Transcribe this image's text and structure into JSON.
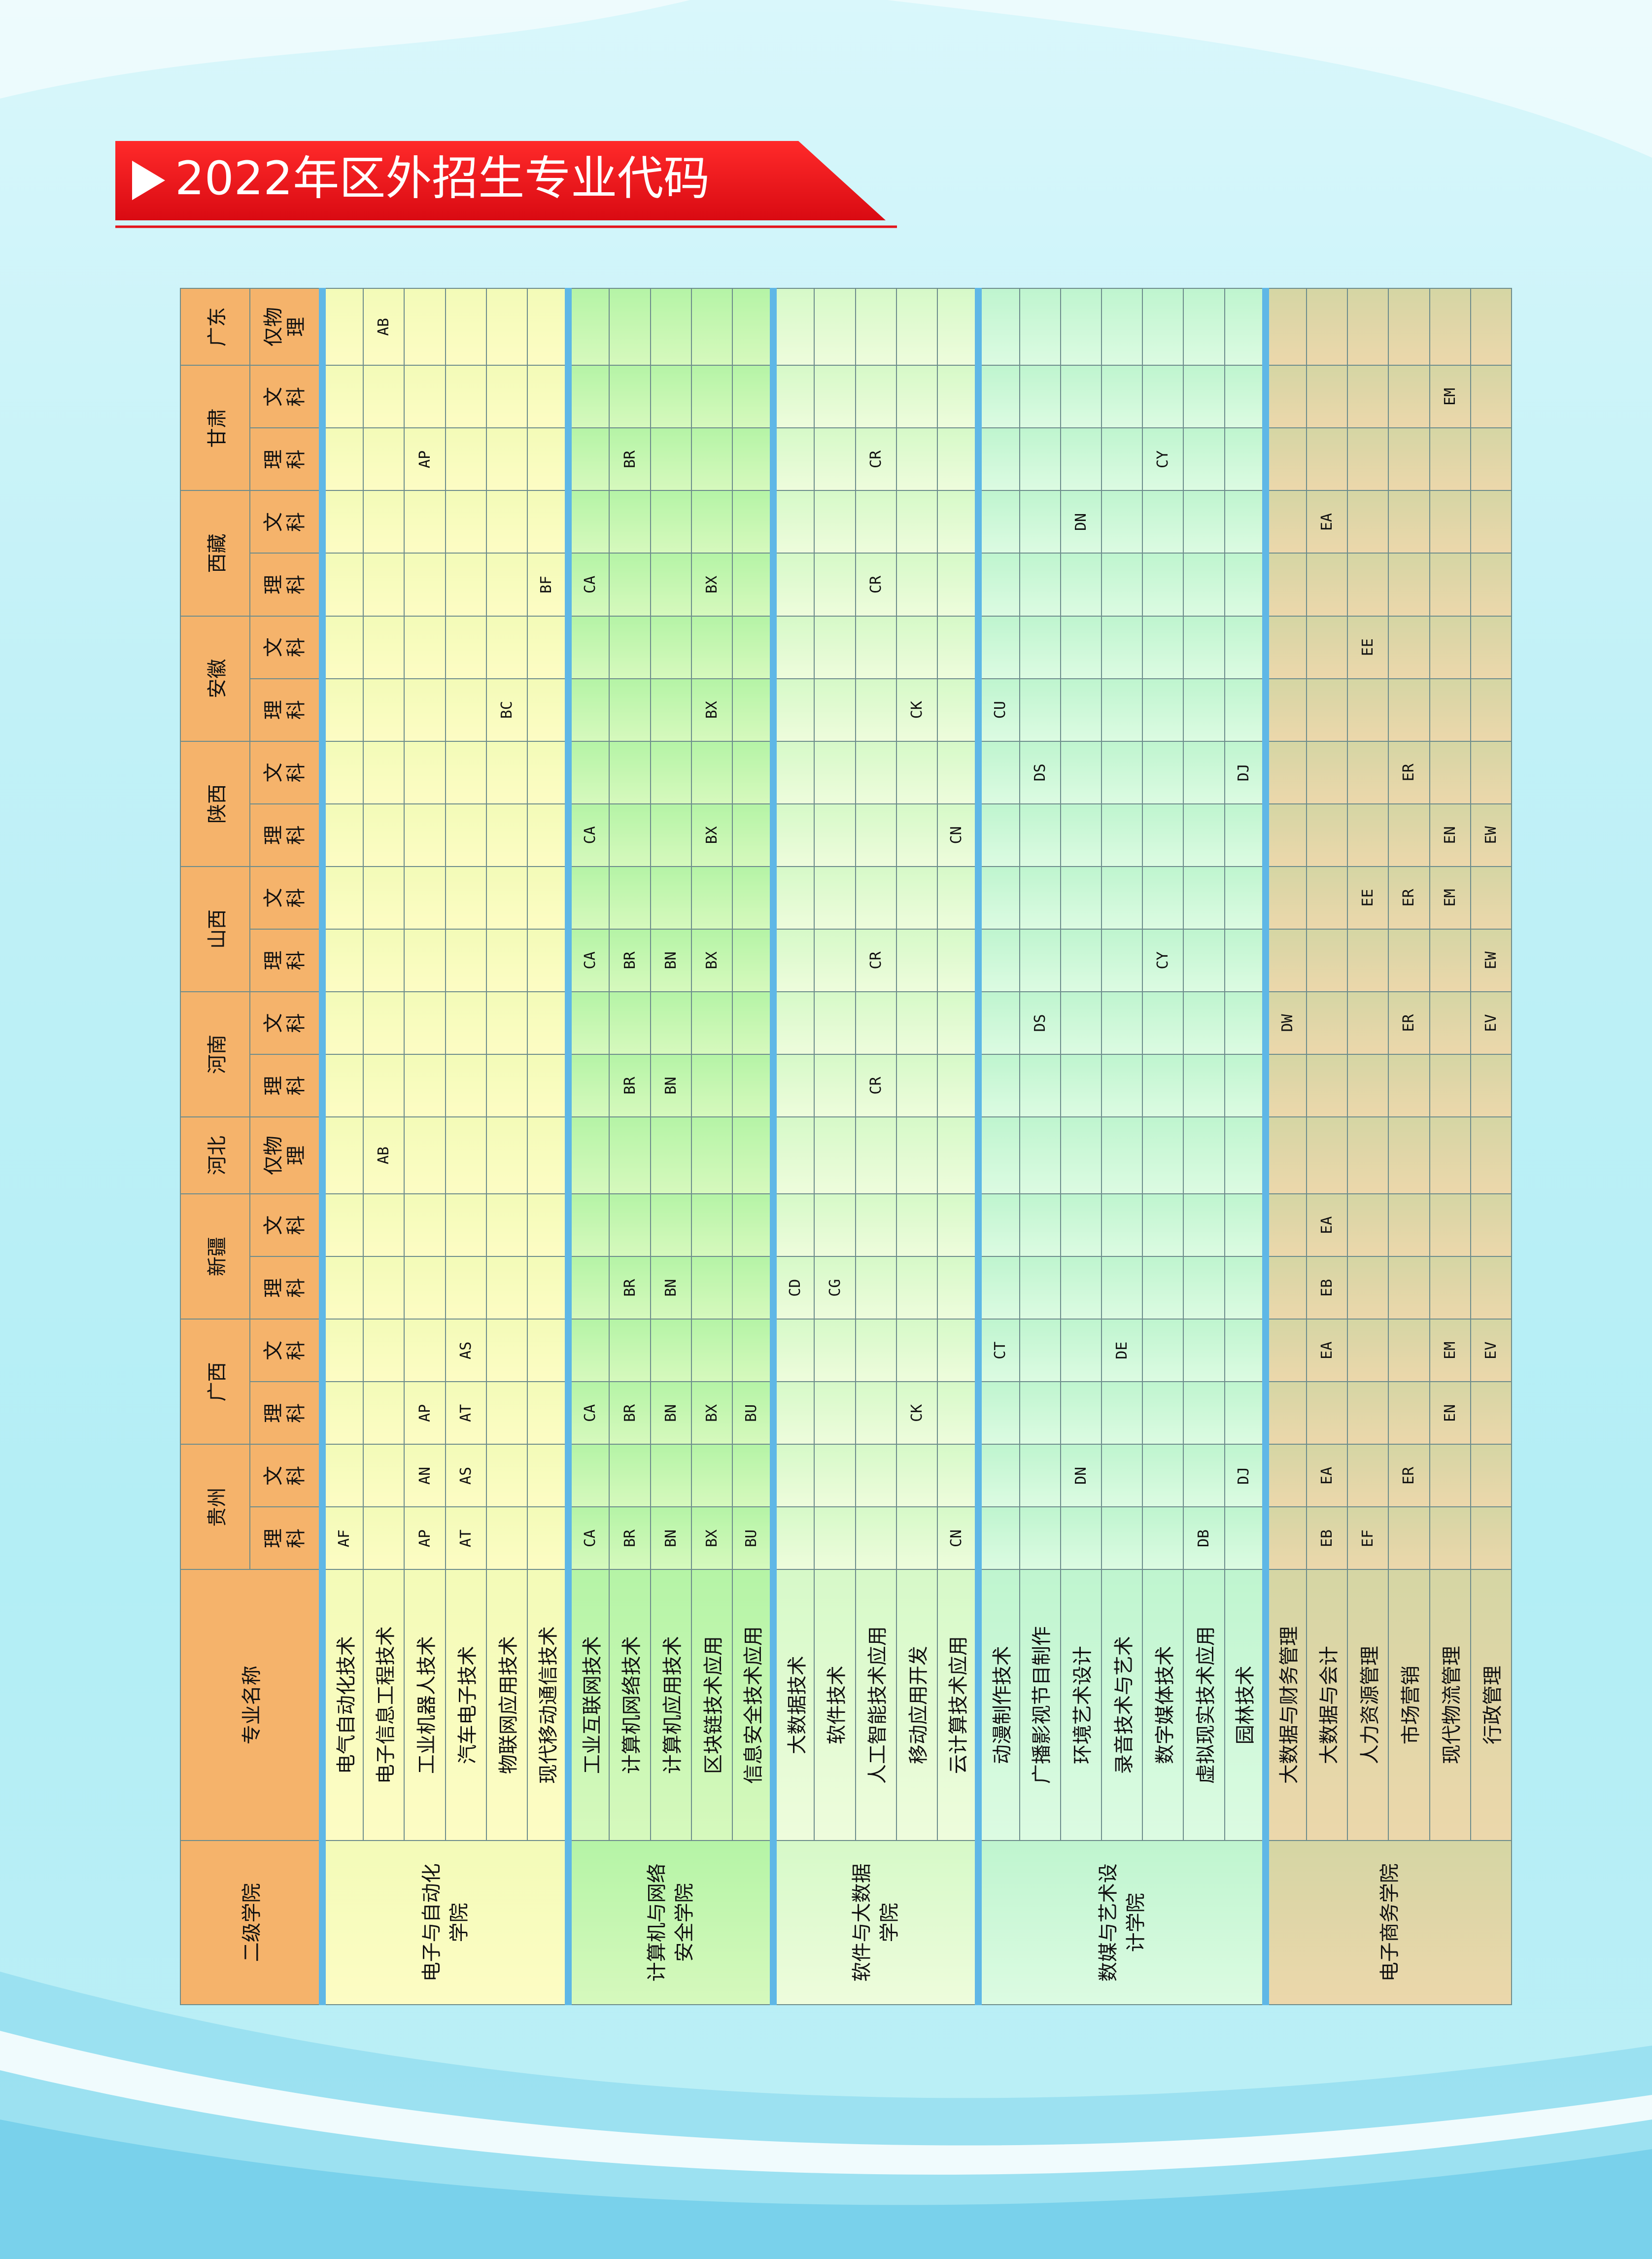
{
  "title": "2022年区外招生专业代码",
  "table": {
    "headers": {
      "college": "二级学院",
      "major": "专业名称",
      "provinces": [
        {
          "name": "贵州",
          "subs": [
            "理科",
            "文科"
          ]
        },
        {
          "name": "广西",
          "subs": [
            "理科",
            "文科"
          ]
        },
        {
          "name": "新疆",
          "subs": [
            "理科",
            "文科"
          ]
        },
        {
          "name": "河北",
          "subs": [
            "仅物理"
          ]
        },
        {
          "name": "河南",
          "subs": [
            "理科",
            "文科"
          ]
        },
        {
          "name": "山西",
          "subs": [
            "理科",
            "文科"
          ]
        },
        {
          "name": "陕西",
          "subs": [
            "理科",
            "文科"
          ]
        },
        {
          "name": "安徽",
          "subs": [
            "理科",
            "文科"
          ]
        },
        {
          "name": "西藏",
          "subs": [
            "理科",
            "文科"
          ]
        },
        {
          "name": "甘肃",
          "subs": [
            "理科",
            "文科"
          ]
        },
        {
          "name": "广东",
          "subs": [
            "仅物理"
          ]
        }
      ]
    },
    "groups": [
      {
        "college": "电子与自动化学院",
        "majors": [
          {
            "name": "电气自动化技术",
            "codes": [
              "AF",
              null,
              null,
              null,
              null,
              null,
              null,
              null,
              null,
              null,
              null,
              null,
              null,
              null,
              null,
              null,
              null,
              null,
              null,
              null
            ]
          },
          {
            "name": "电子信息工程技术",
            "codes": [
              null,
              null,
              null,
              null,
              null,
              null,
              "AB",
              null,
              null,
              null,
              null,
              null,
              null,
              null,
              null,
              null,
              null,
              null,
              null,
              "AB"
            ]
          },
          {
            "name": "工业机器人技术",
            "codes": [
              "AP",
              "AN",
              "AP",
              null,
              null,
              null,
              null,
              null,
              null,
              null,
              null,
              null,
              null,
              null,
              null,
              null,
              null,
              "AP",
              null,
              null
            ]
          },
          {
            "name": "汽车电子技术",
            "codes": [
              "AT",
              "AS",
              "AT",
              "AS",
              null,
              null,
              null,
              null,
              null,
              null,
              null,
              null,
              null,
              null,
              null,
              null,
              null,
              null,
              null,
              null
            ]
          },
          {
            "name": "物联网应用技术",
            "codes": [
              null,
              null,
              null,
              null,
              null,
              null,
              null,
              null,
              null,
              null,
              null,
              null,
              null,
              "BC",
              null,
              null,
              null,
              null,
              null,
              null
            ]
          },
          {
            "name": "现代移动通信技术",
            "codes": [
              null,
              null,
              null,
              null,
              null,
              null,
              null,
              null,
              null,
              null,
              null,
              null,
              null,
              null,
              null,
              "BF",
              null,
              null,
              null,
              null
            ]
          }
        ]
      },
      {
        "college": "计算机与网络安全学院",
        "majors": [
          {
            "name": "工业互联网技术",
            "codes": [
              "CA",
              null,
              "CA",
              null,
              null,
              null,
              null,
              null,
              null,
              "CA",
              null,
              "CA",
              null,
              null,
              null,
              "CA",
              null,
              null,
              null,
              null
            ]
          },
          {
            "name": "计算机网络技术",
            "codes": [
              "BR",
              null,
              "BR",
              null,
              "BR",
              null,
              null,
              "BR",
              null,
              "BR",
              null,
              null,
              null,
              null,
              null,
              null,
              null,
              "BR",
              null,
              null
            ]
          },
          {
            "name": "计算机应用技术",
            "codes": [
              "BN",
              null,
              "BN",
              null,
              "BN",
              null,
              null,
              "BN",
              null,
              "BN",
              null,
              null,
              null,
              null,
              null,
              null,
              null,
              null,
              null,
              null
            ]
          },
          {
            "name": "区块链技术应用",
            "codes": [
              "BX",
              null,
              "BX",
              null,
              null,
              null,
              null,
              null,
              null,
              "BX",
              null,
              "BX",
              null,
              "BX",
              null,
              "BX",
              null,
              null,
              null,
              null
            ]
          },
          {
            "name": "信息安全技术应用",
            "codes": [
              "BU",
              null,
              "BU",
              null,
              null,
              null,
              null,
              null,
              null,
              null,
              null,
              null,
              null,
              null,
              null,
              null,
              null,
              null,
              null,
              null
            ]
          }
        ]
      },
      {
        "college": "软件与大数据学院",
        "majors": [
          {
            "name": "大数据技术",
            "codes": [
              null,
              null,
              null,
              null,
              "CD",
              null,
              null,
              null,
              null,
              null,
              null,
              null,
              null,
              null,
              null,
              null,
              null,
              null,
              null,
              null
            ]
          },
          {
            "name": "软件技术",
            "codes": [
              null,
              null,
              null,
              null,
              "CG",
              null,
              null,
              null,
              null,
              null,
              null,
              null,
              null,
              null,
              null,
              null,
              null,
              null,
              null,
              null
            ]
          },
          {
            "name": "人工智能技术应用",
            "codes": [
              null,
              null,
              null,
              null,
              null,
              null,
              null,
              "CR",
              null,
              "CR",
              null,
              null,
              null,
              null,
              null,
              "CR",
              null,
              "CR",
              null,
              null
            ]
          },
          {
            "name": "移动应用开发",
            "codes": [
              null,
              null,
              "CK",
              null,
              null,
              null,
              null,
              null,
              null,
              null,
              null,
              null,
              null,
              "CK",
              null,
              null,
              null,
              null,
              null,
              null
            ]
          },
          {
            "name": "云计算技术应用",
            "codes": [
              "CN",
              null,
              null,
              null,
              null,
              null,
              null,
              null,
              null,
              null,
              null,
              "CN",
              null,
              null,
              null,
              null,
              null,
              null,
              null,
              null
            ]
          }
        ]
      },
      {
        "college": "数媒与艺术设计学院",
        "majors": [
          {
            "name": "动漫制作技术",
            "codes": [
              null,
              null,
              null,
              "CT",
              null,
              null,
              null,
              null,
              null,
              null,
              null,
              null,
              null,
              "CU",
              null,
              null,
              null,
              null,
              null,
              null
            ]
          },
          {
            "name": "广播影视节目制作",
            "codes": [
              null,
              null,
              null,
              null,
              null,
              null,
              null,
              null,
              "DS",
              null,
              null,
              null,
              "DS",
              null,
              null,
              null,
              null,
              null,
              null,
              null
            ]
          },
          {
            "name": "环境艺术设计",
            "codes": [
              null,
              "DN",
              null,
              null,
              null,
              null,
              null,
              null,
              null,
              null,
              null,
              null,
              null,
              null,
              null,
              null,
              "DN",
              null,
              null,
              null
            ]
          },
          {
            "name": "录音技术与艺术",
            "codes": [
              null,
              null,
              null,
              "DE",
              null,
              null,
              null,
              null,
              null,
              null,
              null,
              null,
              null,
              null,
              null,
              null,
              null,
              null,
              null,
              null
            ]
          },
          {
            "name": "数字媒体技术",
            "codes": [
              null,
              null,
              null,
              null,
              null,
              null,
              null,
              null,
              null,
              "CY",
              null,
              null,
              null,
              null,
              null,
              null,
              null,
              "CY",
              null,
              null
            ]
          },
          {
            "name": "虚拟现实技术应用",
            "codes": [
              "DB",
              null,
              null,
              null,
              null,
              null,
              null,
              null,
              null,
              null,
              null,
              null,
              null,
              null,
              null,
              null,
              null,
              null,
              null,
              null
            ]
          },
          {
            "name": "园林技术",
            "codes": [
              null,
              "DJ",
              null,
              null,
              null,
              null,
              null,
              null,
              null,
              null,
              null,
              null,
              "DJ",
              null,
              null,
              null,
              null,
              null,
              null,
              null
            ]
          }
        ]
      },
      {
        "college": "电子商务学院",
        "majors": [
          {
            "name": "大数据与财务管理",
            "codes": [
              null,
              null,
              null,
              null,
              null,
              null,
              null,
              null,
              "DW",
              null,
              null,
              null,
              null,
              null,
              null,
              null,
              null,
              null,
              null,
              null
            ]
          },
          {
            "name": "大数据与会计",
            "codes": [
              "EB",
              "EA",
              null,
              "EA",
              "EB",
              "EA",
              null,
              null,
              null,
              null,
              null,
              null,
              null,
              null,
              null,
              null,
              "EA",
              null,
              null,
              null
            ]
          },
          {
            "name": "人力资源管理",
            "codes": [
              "EF",
              null,
              null,
              null,
              null,
              null,
              null,
              null,
              null,
              null,
              "EE",
              null,
              null,
              null,
              "EE",
              null,
              null,
              null,
              null,
              null
            ]
          },
          {
            "name": "市场营销",
            "codes": [
              null,
              "ER",
              null,
              null,
              null,
              null,
              null,
              null,
              "ER",
              null,
              "ER",
              null,
              "ER",
              null,
              null,
              null,
              null,
              null,
              null,
              null
            ]
          },
          {
            "name": "现代物流管理",
            "codes": [
              null,
              null,
              "EN",
              "EM",
              null,
              null,
              null,
              null,
              null,
              null,
              "EM",
              "EN",
              null,
              null,
              null,
              null,
              null,
              null,
              "EM",
              null
            ]
          },
          {
            "name": "行政管理",
            "codes": [
              null,
              null,
              null,
              "EV",
              null,
              null,
              null,
              null,
              "EV",
              "EW",
              null,
              "EW",
              null,
              null,
              null,
              null,
              null,
              null,
              null,
              null
            ]
          }
        ]
      }
    ]
  }
}
